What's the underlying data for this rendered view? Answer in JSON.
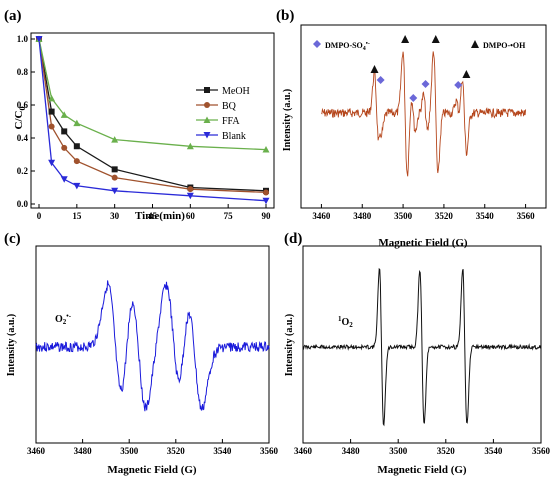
{
  "chart_data": [
    {
      "panel": "(a)",
      "type": "line",
      "ylabel": "C/C0",
      "ylabel_main": "C/C",
      "ylabel_sub": "0",
      "xlabel": "Time(min)",
      "xlim": [
        0,
        90
      ],
      "ylim": [
        0,
        1.0
      ],
      "xticks": [
        "0",
        "15",
        "30",
        "45",
        "60",
        "75",
        "90"
      ],
      "yticks": [
        "0.0",
        "0.2",
        "0.4",
        "0.6",
        "0.8",
        "1.0"
      ],
      "legend_position": "right",
      "series": [
        {
          "name": "MeOH",
          "color": "#1a1a1a",
          "marker": "square",
          "x": [
            0,
            5,
            10,
            15,
            30,
            60,
            90
          ],
          "y": [
            1.0,
            0.56,
            0.44,
            0.35,
            0.21,
            0.1,
            0.08
          ]
        },
        {
          "name": "BQ",
          "color": "#a0522d",
          "marker": "circle",
          "x": [
            0,
            5,
            10,
            15,
            30,
            60,
            90
          ],
          "y": [
            1.0,
            0.47,
            0.34,
            0.26,
            0.16,
            0.09,
            0.07
          ]
        },
        {
          "name": "FFA",
          "color": "#6ab04c",
          "marker": "triangle-up",
          "x": [
            0,
            5,
            10,
            15,
            30,
            60,
            90
          ],
          "y": [
            1.0,
            0.64,
            0.54,
            0.49,
            0.39,
            0.35,
            0.33
          ]
        },
        {
          "name": "Blank",
          "color": "#2a2ad8",
          "marker": "triangle-down",
          "x": [
            0,
            5,
            10,
            15,
            30,
            60,
            90
          ],
          "y": [
            1.0,
            0.25,
            0.15,
            0.11,
            0.08,
            0.05,
            0.02
          ]
        }
      ]
    },
    {
      "panel": "(b)",
      "type": "line",
      "xlabel": "Magnetic Field (G)",
      "ylabel": "Intensity (a.u.)",
      "xlim": [
        3450,
        3570
      ],
      "xticks": [
        "3460",
        "3480",
        "3500",
        "3520",
        "3540",
        "3560"
      ],
      "grid": false,
      "legend_position": "top",
      "series": [
        {
          "name": "DMPO-SO4•-/DMPO-•OH",
          "color": "#b5461c"
        }
      ],
      "legend": [
        {
          "label": "DMPO-SO4•-",
          "label_main": "DMPO-SO",
          "label_sub": "4",
          "label_sup": "•-",
          "marker": "diamond",
          "color": "#6b68d8"
        },
        {
          "label": "DMPO-•OH",
          "marker": "triangle",
          "color": "#111111"
        }
      ],
      "peaks_triangle": [
        3487,
        3501,
        3516,
        3530
      ],
      "peaks_diamond": [
        3489,
        3505,
        3511,
        3527
      ]
    },
    {
      "panel": "(c)",
      "type": "line",
      "xlabel": "Magnetic Field (G)",
      "ylabel": "Intensity (a.u.)",
      "xlim": [
        3460,
        3560
      ],
      "xticks": [
        "3460",
        "3480",
        "3500",
        "3520",
        "3540",
        "3560"
      ],
      "series": [
        {
          "name": "O2•-",
          "color": "#1a1adb"
        }
      ],
      "annotation": "O2•-",
      "annotation_main": "O",
      "annotation_sub": "2",
      "annotation_sup": "•-",
      "peak_centers": [
        3494,
        3504,
        3519,
        3528
      ]
    },
    {
      "panel": "(d)",
      "type": "line",
      "xlabel": "Magnetic Field (G)",
      "ylabel": "Intensity (a.u.)",
      "xlim": [
        3460,
        3560
      ],
      "xticks": [
        "3460",
        "3480",
        "3500",
        "3520",
        "3540",
        "3560"
      ],
      "series": [
        {
          "name": "1O2",
          "color": "#111111"
        }
      ],
      "annotation": "1O2",
      "annotation_sup": "1",
      "annotation_main": "O",
      "annotation_sub": "2",
      "peak_centers": [
        3493,
        3510,
        3528
      ]
    }
  ]
}
